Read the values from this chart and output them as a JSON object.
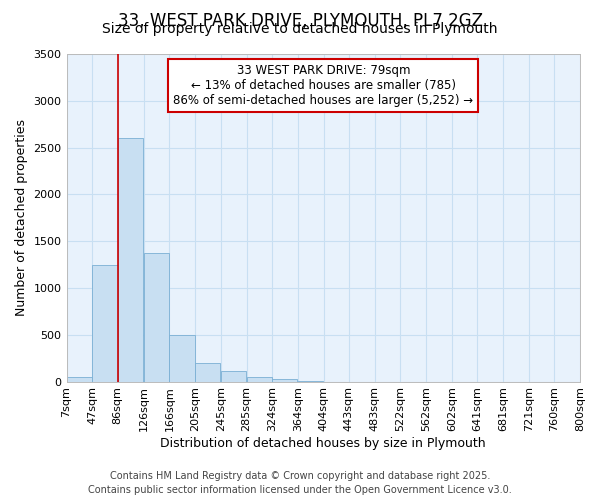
{
  "title1": "33, WEST PARK DRIVE, PLYMOUTH, PL7 2GZ",
  "title2": "Size of property relative to detached houses in Plymouth",
  "xlabel": "Distribution of detached houses by size in Plymouth",
  "ylabel": "Number of detached properties",
  "annotation_line1": "33 WEST PARK DRIVE: 79sqm",
  "annotation_line2": "← 13% of detached houses are smaller (785)",
  "annotation_line3": "86% of semi-detached houses are larger (5,252) →",
  "bar_left_edges": [
    7,
    47,
    86,
    126,
    166,
    205,
    245,
    285,
    324,
    364,
    404,
    443,
    483,
    522,
    562,
    602,
    641,
    681,
    721,
    760
  ],
  "bar_widths": [
    39,
    39,
    39,
    39,
    39,
    39,
    39,
    39,
    39,
    39,
    39,
    39,
    39,
    39,
    39,
    39,
    39,
    39,
    39,
    39
  ],
  "bar_heights": [
    50,
    1250,
    2600,
    1370,
    500,
    200,
    110,
    50,
    30,
    10,
    0,
    0,
    0,
    0,
    0,
    0,
    0,
    0,
    0,
    0
  ],
  "bar_color": "#c8dff2",
  "bar_edge_color": "#7aafd4",
  "grid_color": "#c8dff2",
  "bg_color": "#e8f2fc",
  "vline_color": "#cc0000",
  "vline_x": 86,
  "ylim": [
    0,
    3500
  ],
  "yticks": [
    0,
    500,
    1000,
    1500,
    2000,
    2500,
    3000,
    3500
  ],
  "xlim": [
    7,
    800
  ],
  "xtick_positions": [
    7,
    47,
    86,
    126,
    166,
    205,
    245,
    285,
    324,
    364,
    404,
    443,
    483,
    522,
    562,
    602,
    641,
    681,
    721,
    760,
    800
  ],
  "xtick_labels": [
    "7sqm",
    "47sqm",
    "86sqm",
    "126sqm",
    "166sqm",
    "205sqm",
    "245sqm",
    "285sqm",
    "324sqm",
    "364sqm",
    "404sqm",
    "443sqm",
    "483sqm",
    "522sqm",
    "562sqm",
    "602sqm",
    "641sqm",
    "681sqm",
    "721sqm",
    "760sqm",
    "800sqm"
  ],
  "footer1": "Contains HM Land Registry data © Crown copyright and database right 2025.",
  "footer2": "Contains public sector information licensed under the Open Government Licence v3.0.",
  "annotation_box_color": "#cc0000",
  "title_fontsize": 12,
  "subtitle_fontsize": 10,
  "axis_label_fontsize": 9,
  "tick_fontsize": 8,
  "annotation_fontsize": 8.5,
  "footer_fontsize": 7
}
